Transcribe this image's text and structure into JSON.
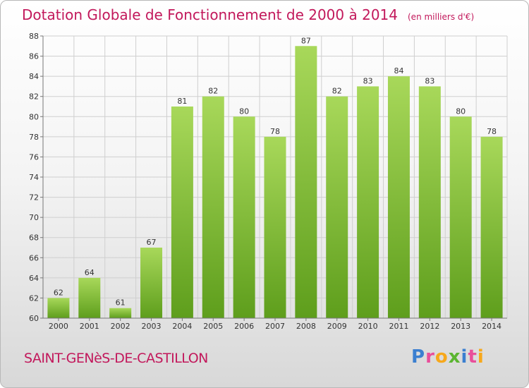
{
  "title": "Dotation Globale de Fonctionnement de 2000 à 2014",
  "unit": "(en milliers d'€)",
  "commune": "SAINT-GENèS-DE-CASTILLON",
  "logo": {
    "letters": [
      "P",
      "r",
      "o",
      "x",
      "i",
      "t",
      "i"
    ],
    "colors": [
      "#3b7fd0",
      "#e94e9a",
      "#f7a81b",
      "#5bb531",
      "#3b7fd0",
      "#e94e9a",
      "#f7a81b"
    ]
  },
  "colors": {
    "title": "#c2185b",
    "bar_top": "#a8d85a",
    "bar_bottom": "#5e9e1c",
    "grid": "#cfcfcf",
    "axis": "#777777"
  },
  "chart_data": {
    "type": "bar",
    "title": "Dotation Globale de Fonctionnement de 2000 à 2014",
    "categories": [
      "2000",
      "2001",
      "2002",
      "2003",
      "2004",
      "2005",
      "2006",
      "2007",
      "2008",
      "2009",
      "2010",
      "2011",
      "2012",
      "2013",
      "2014"
    ],
    "values": [
      62,
      64,
      61,
      67,
      81,
      82,
      80,
      78,
      87,
      82,
      83,
      84,
      83,
      80,
      78
    ],
    "ylim": [
      60,
      88
    ],
    "yticks": [
      60,
      62,
      64,
      66,
      68,
      70,
      72,
      74,
      76,
      78,
      80,
      82,
      84,
      86,
      88
    ],
    "grid": true,
    "xlabel": "",
    "ylabel": ""
  }
}
